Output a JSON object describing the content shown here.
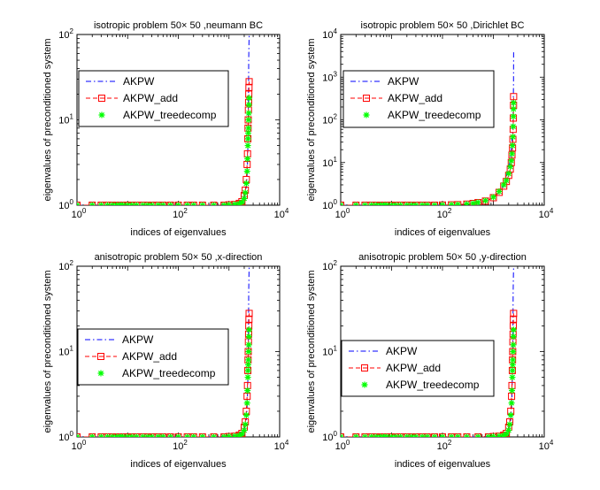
{
  "chart_data": [
    {
      "type": "line",
      "title": "isotropic problem 50× 50 ,neumann BC",
      "xlabel": "indices of eigenvalues",
      "ylabel": "eigenvalues of preconditioned system",
      "xscale": "log",
      "yscale": "log",
      "xlim": [
        1,
        10000
      ],
      "ylim": [
        1,
        100
      ],
      "x_ticks": [
        1,
        100,
        10000
      ],
      "x_tick_labels": [
        {
          "base": "10",
          "exp": "0"
        },
        {
          "base": "10",
          "exp": "2"
        },
        {
          "base": "10",
          "exp": "4"
        }
      ],
      "y_ticks": [
        1,
        10,
        100
      ],
      "y_tick_labels": [
        {
          "base": "10",
          "exp": "0"
        },
        {
          "base": "10",
          "exp": "1"
        },
        {
          "base": "10",
          "exp": "2"
        }
      ],
      "grid": false,
      "legend_position": "left",
      "series": [
        {
          "name": "AKPW",
          "style": "dashdot",
          "marker": "none",
          "color": "#0000ff",
          "x": [
            1,
            10,
            100,
            500,
            1000,
            1500,
            2000,
            2200,
            2300,
            2380,
            2420,
            2440,
            2450,
            2480,
            2500
          ],
          "y": [
            1,
            1,
            1,
            1,
            1.02,
            1.05,
            1.2,
            1.6,
            2.5,
            6,
            15,
            30,
            50,
            80,
            100
          ]
        },
        {
          "name": "AKPW_add",
          "style": "dashed",
          "marker": "square",
          "color": "#ff0000",
          "x": [
            1,
            2,
            3,
            4,
            5,
            6,
            7,
            8,
            10,
            12,
            15,
            20,
            25,
            30,
            40,
            50,
            70,
            100,
            150,
            200,
            300,
            500,
            800,
            1000,
            1300,
            1600,
            1800,
            2000,
            2100,
            2200,
            2280,
            2320,
            2360,
            2380,
            2400,
            2420,
            2440,
            2460,
            2480,
            2500
          ],
          "y": [
            1,
            1,
            1,
            1,
            1,
            1,
            1,
            1,
            1,
            1,
            1,
            1,
            1,
            1,
            1,
            1,
            1,
            1,
            1,
            1,
            1,
            1,
            1,
            1.01,
            1.02,
            1.05,
            1.1,
            1.3,
            1.5,
            2,
            3,
            4,
            6,
            8,
            10,
            13,
            16,
            20,
            24,
            28
          ]
        },
        {
          "name": "AKPW_treedecomp",
          "style": "none",
          "marker": "asterisk",
          "color": "#00ff00",
          "x": [
            1,
            2,
            3,
            4,
            5,
            6,
            7,
            8,
            10,
            12,
            15,
            20,
            25,
            30,
            40,
            50,
            70,
            100,
            150,
            200,
            300,
            500,
            800,
            1000,
            1300,
            1600,
            1800,
            2000,
            2100,
            2200,
            2280,
            2320,
            2360,
            2380,
            2400,
            2420,
            2440,
            2460,
            2480,
            2500
          ],
          "y": [
            1,
            1,
            1,
            1,
            1,
            1,
            1,
            1,
            1,
            1,
            1,
            1,
            1,
            1,
            1,
            1,
            1,
            1,
            1,
            1,
            1,
            1,
            1,
            1.01,
            1.02,
            1.04,
            1.08,
            1.2,
            1.4,
            1.8,
            2.5,
            3.5,
            5,
            6,
            7,
            8,
            10,
            12,
            15,
            18
          ]
        }
      ]
    },
    {
      "type": "line",
      "title": "isotropic problem 50× 50 ,Dirichlet BC",
      "xlabel": "indices of eigenvalues",
      "ylabel": "eigenvalues of preconditioned system",
      "xscale": "log",
      "yscale": "log",
      "xlim": [
        1,
        10000
      ],
      "ylim": [
        1,
        10000
      ],
      "x_ticks": [
        1,
        100,
        10000
      ],
      "x_tick_labels": [
        {
          "base": "10",
          "exp": "0"
        },
        {
          "base": "10",
          "exp": "2"
        },
        {
          "base": "10",
          "exp": "4"
        }
      ],
      "y_ticks": [
        1,
        10,
        100,
        1000,
        10000
      ],
      "y_tick_labels": [
        {
          "base": "10",
          "exp": "0"
        },
        {
          "base": "10",
          "exp": "1"
        },
        {
          "base": "10",
          "exp": "2"
        },
        {
          "base": "10",
          "exp": "3"
        },
        {
          "base": "10",
          "exp": "4"
        }
      ],
      "grid": false,
      "legend_position": "top-left",
      "series": [
        {
          "name": "AKPW",
          "style": "dashdot",
          "marker": "none",
          "color": "#0000ff",
          "x": [
            1,
            10,
            100,
            300,
            500,
            800,
            1000,
            1300,
            1600,
            1900,
            2100,
            2250,
            2350,
            2420,
            2460,
            2490,
            2500
          ],
          "y": [
            1,
            1,
            1.01,
            1.05,
            1.12,
            1.3,
            1.5,
            2,
            3,
            6,
            10,
            20,
            40,
            80,
            200,
            800,
            4000
          ]
        },
        {
          "name": "AKPW_add",
          "style": "dashed",
          "marker": "square",
          "color": "#ff0000",
          "x": [
            1,
            2,
            3,
            4,
            5,
            6,
            7,
            8,
            10,
            12,
            15,
            20,
            25,
            30,
            40,
            50,
            70,
            100,
            150,
            200,
            300,
            400,
            500,
            700,
            1000,
            1300,
            1600,
            1800,
            2000,
            2150,
            2250,
            2320,
            2380,
            2420,
            2450,
            2470,
            2490,
            2500
          ],
          "y": [
            1,
            1,
            1,
            1,
            1,
            1,
            1,
            1,
            1,
            1,
            1,
            1,
            1,
            1,
            1,
            1,
            1,
            1.01,
            1.02,
            1.03,
            1.06,
            1.1,
            1.15,
            1.25,
            1.5,
            2,
            2.8,
            3.6,
            5,
            7,
            10,
            15,
            22,
            35,
            60,
            110,
            220,
            350
          ]
        },
        {
          "name": "AKPW_treedecomp",
          "style": "none",
          "marker": "asterisk",
          "color": "#00ff00",
          "x": [
            1,
            2,
            3,
            4,
            5,
            6,
            7,
            8,
            10,
            12,
            15,
            20,
            25,
            30,
            40,
            50,
            70,
            100,
            150,
            200,
            300,
            400,
            500,
            700,
            1000,
            1300,
            1600,
            1800,
            2000,
            2150,
            2250,
            2320,
            2380,
            2420,
            2450,
            2470,
            2490,
            2500
          ],
          "y": [
            1,
            1,
            1,
            1,
            1,
            1,
            1,
            1,
            1,
            1,
            1,
            1,
            1,
            1,
            1,
            1,
            1,
            1.01,
            1.02,
            1.03,
            1.06,
            1.1,
            1.16,
            1.28,
            1.55,
            2.1,
            3,
            3.8,
            5.5,
            8,
            11,
            16,
            25,
            40,
            70,
            120,
            180,
            250
          ]
        }
      ]
    },
    {
      "type": "line",
      "title": "anisotropic problem 50× 50 ,x-direction",
      "xlabel": "indices of eigenvalues",
      "ylabel": "eigenvalues of preconditioned system",
      "xscale": "log",
      "yscale": "log",
      "xlim": [
        1,
        10000
      ],
      "ylim": [
        1,
        100
      ],
      "x_ticks": [
        1,
        100,
        10000
      ],
      "x_tick_labels": [
        {
          "base": "10",
          "exp": "0"
        },
        {
          "base": "10",
          "exp": "2"
        },
        {
          "base": "10",
          "exp": "4"
        }
      ],
      "y_ticks": [
        1,
        10,
        100
      ],
      "y_tick_labels": [
        {
          "base": "10",
          "exp": "0"
        },
        {
          "base": "10",
          "exp": "1"
        },
        {
          "base": "10",
          "exp": "2"
        }
      ],
      "grid": false,
      "legend_position": "left",
      "series": [
        {
          "name": "AKPW",
          "style": "dashdot",
          "marker": "none",
          "color": "#0000ff",
          "x": [
            1,
            10,
            100,
            500,
            1000,
            1500,
            2000,
            2200,
            2300,
            2380,
            2420,
            2440,
            2450,
            2480,
            2500
          ],
          "y": [
            1,
            1,
            1,
            1,
            1.02,
            1.05,
            1.2,
            1.6,
            2.5,
            6,
            15,
            30,
            50,
            80,
            100
          ]
        },
        {
          "name": "AKPW_add",
          "style": "dashed",
          "marker": "square",
          "color": "#ff0000",
          "x": [
            1,
            2,
            3,
            4,
            5,
            6,
            7,
            8,
            10,
            12,
            15,
            20,
            25,
            30,
            40,
            50,
            70,
            100,
            150,
            200,
            300,
            500,
            800,
            1000,
            1300,
            1600,
            1800,
            2000,
            2100,
            2200,
            2280,
            2320,
            2360,
            2380,
            2400,
            2420,
            2440,
            2460,
            2480,
            2500
          ],
          "y": [
            1,
            1,
            1,
            1,
            1,
            1,
            1,
            1,
            1,
            1,
            1,
            1,
            1,
            1,
            1,
            1,
            1,
            1,
            1,
            1,
            1,
            1,
            1,
            1.01,
            1.02,
            1.05,
            1.1,
            1.3,
            1.5,
            2,
            3,
            4,
            6,
            8,
            10,
            13,
            16,
            20,
            24,
            28
          ]
        },
        {
          "name": "AKPW_treedecomp",
          "style": "none",
          "marker": "asterisk",
          "color": "#00ff00",
          "x": [
            1,
            2,
            3,
            4,
            5,
            6,
            7,
            8,
            10,
            12,
            15,
            20,
            25,
            30,
            40,
            50,
            70,
            100,
            150,
            200,
            300,
            500,
            800,
            1000,
            1300,
            1600,
            1800,
            2000,
            2100,
            2200,
            2280,
            2320,
            2360,
            2380,
            2400,
            2420,
            2440,
            2460,
            2480,
            2500
          ],
          "y": [
            1,
            1,
            1,
            1,
            1,
            1,
            1,
            1,
            1,
            1,
            1,
            1,
            1,
            1,
            1,
            1,
            1,
            1,
            1,
            1,
            1,
            1,
            1,
            1.01,
            1.02,
            1.04,
            1.08,
            1.2,
            1.4,
            1.8,
            2.5,
            3.5,
            5,
            6,
            7,
            8,
            10,
            12,
            15,
            18
          ]
        }
      ]
    },
    {
      "type": "line",
      "title": "anisotropic problem 50× 50 ,y-direction",
      "xlabel": "indices of eigenvalues",
      "ylabel": "eigenvalues of preconditioned system",
      "xscale": "log",
      "yscale": "log",
      "xlim": [
        1,
        10000
      ],
      "ylim": [
        1,
        100
      ],
      "x_ticks": [
        1,
        100,
        10000
      ],
      "x_tick_labels": [
        {
          "base": "10",
          "exp": "0"
        },
        {
          "base": "10",
          "exp": "2"
        },
        {
          "base": "10",
          "exp": "4"
        }
      ],
      "y_ticks": [
        1,
        10,
        100
      ],
      "y_tick_labels": [
        {
          "base": "10",
          "exp": "0"
        },
        {
          "base": "10",
          "exp": "1"
        },
        {
          "base": "10",
          "exp": "2"
        }
      ],
      "grid": false,
      "legend_position": "left",
      "series": [
        {
          "name": "AKPW",
          "style": "dashdot",
          "marker": "none",
          "color": "#0000ff",
          "x": [
            1,
            10,
            100,
            500,
            1000,
            1500,
            2000,
            2200,
            2300,
            2380,
            2420,
            2440,
            2450,
            2480,
            2500
          ],
          "y": [
            1,
            1,
            1,
            1,
            1.02,
            1.05,
            1.2,
            1.6,
            2.5,
            6,
            15,
            30,
            50,
            80,
            100
          ]
        },
        {
          "name": "AKPW_add",
          "style": "dashed",
          "marker": "square",
          "color": "#ff0000",
          "x": [
            1,
            2,
            3,
            4,
            5,
            6,
            7,
            8,
            10,
            12,
            15,
            20,
            25,
            30,
            40,
            50,
            70,
            100,
            150,
            200,
            300,
            500,
            800,
            1000,
            1300,
            1600,
            1800,
            2000,
            2100,
            2200,
            2280,
            2320,
            2360,
            2380,
            2400,
            2420,
            2440,
            2460,
            2480,
            2500
          ],
          "y": [
            1,
            1,
            1,
            1,
            1,
            1,
            1,
            1,
            1,
            1,
            1,
            1,
            1,
            1,
            1,
            1,
            1,
            1,
            1,
            1,
            1,
            1,
            1,
            1.01,
            1.02,
            1.05,
            1.1,
            1.3,
            1.5,
            2,
            3,
            4,
            6,
            8,
            10,
            13,
            16,
            20,
            24,
            28
          ]
        },
        {
          "name": "AKPW_treedecomp",
          "style": "none",
          "marker": "asterisk",
          "color": "#00ff00",
          "x": [
            1,
            2,
            3,
            4,
            5,
            6,
            7,
            8,
            10,
            12,
            15,
            20,
            25,
            30,
            40,
            50,
            70,
            100,
            150,
            200,
            300,
            500,
            800,
            1000,
            1300,
            1600,
            1800,
            2000,
            2100,
            2200,
            2280,
            2320,
            2360,
            2380,
            2400,
            2420,
            2440,
            2460,
            2480,
            2500
          ],
          "y": [
            1,
            1,
            1,
            1,
            1,
            1,
            1,
            1,
            1,
            1,
            1,
            1,
            1,
            1,
            1,
            1,
            1,
            1,
            1,
            1,
            1,
            1,
            1,
            1.01,
            1.02,
            1.04,
            1.08,
            1.2,
            1.4,
            1.8,
            2.5,
            3.5,
            5,
            6,
            7,
            8,
            10,
            12,
            15,
            18
          ]
        }
      ]
    }
  ]
}
